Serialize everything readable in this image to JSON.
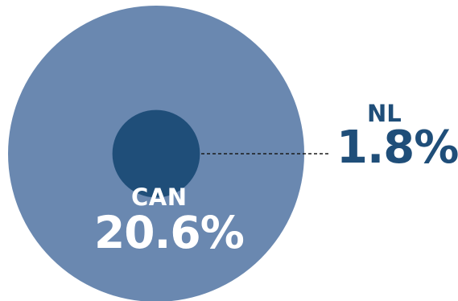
{
  "chart_data": {
    "type": "bubble",
    "series": [
      {
        "name": "CAN",
        "value": 20.6,
        "value_label": "20.6%",
        "color": "#6a88b0"
      },
      {
        "name": "NL",
        "value": 1.8,
        "value_label": "1.8%",
        "color": "#1f4e79"
      }
    ],
    "leader_line": "dashed",
    "title": "",
    "xlabel": "",
    "ylabel": ""
  }
}
